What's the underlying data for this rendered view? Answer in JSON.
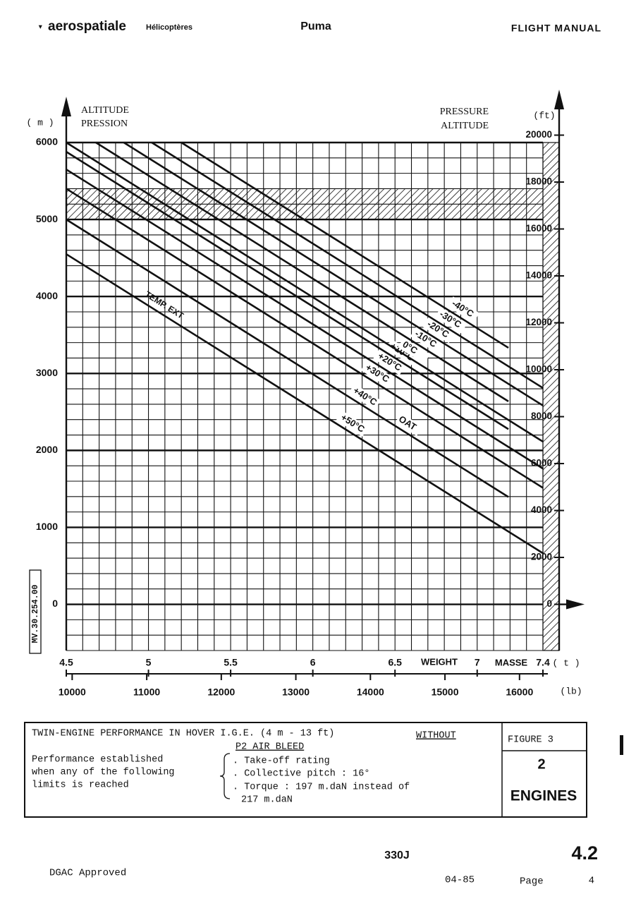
{
  "header": {
    "brand": "aerospatiale",
    "division": "Hélicoptères",
    "aircraft": "Puma",
    "manual": "FLIGHT MANUAL"
  },
  "chart_data": {
    "type": "line",
    "y_label": [
      "ALTITUDE",
      "PRESSION"
    ],
    "y2_label": [
      "PRESSURE",
      "ALTITUDE"
    ],
    "y_unit": "( m )",
    "y2_unit": "(ft)",
    "x_label": "WEIGHT",
    "x_label_fr": "MASSE",
    "x_unit": "( t )",
    "x2_unit": "(lb)",
    "curve_labels": [
      "TEMP. EXT",
      "OAT"
    ],
    "side_code": "MV.30.254.00",
    "xlim": [
      4.5,
      7.4
    ],
    "xticks": [
      4.5,
      5,
      5.5,
      6,
      6.5,
      7,
      7.4
    ],
    "ylim": [
      -600,
      6000
    ],
    "yticks": [
      0,
      1000,
      2000,
      3000,
      4000,
      5000,
      6000
    ],
    "y2lim": [
      -1969,
      19685
    ],
    "y2ticks": [
      0,
      2000,
      4000,
      6000,
      8000,
      10000,
      12000,
      14000,
      16000,
      18000,
      20000
    ],
    "x2lim": [
      9921,
      16314
    ],
    "x2ticks": [
      10000,
      11000,
      12000,
      13000,
      14000,
      15000,
      16000
    ],
    "xgrid": [
      4.5,
      4.6,
      4.7,
      4.8,
      4.9,
      5.0,
      5.1,
      5.2,
      5.3,
      5.4,
      5.5,
      5.6,
      5.7,
      5.8,
      5.9,
      6.0,
      6.1,
      6.2,
      6.3,
      6.4,
      6.5,
      6.6,
      6.7,
      6.8,
      6.9,
      7.0,
      7.1,
      7.2,
      7.3,
      7.4
    ],
    "ygrid": [
      -600,
      -400,
      -200,
      0,
      200,
      400,
      600,
      800,
      1000,
      1200,
      1400,
      1600,
      1800,
      2000,
      2200,
      2400,
      2600,
      2800,
      3000,
      3200,
      3400,
      3600,
      3800,
      4000,
      4200,
      4400,
      4600,
      4800,
      5000,
      5200,
      5400,
      5600,
      5800,
      6000
    ],
    "hatched_band": [
      5000,
      5400
    ],
    "color": "#111111",
    "series": [
      {
        "name": "+50°C",
        "x": [
          4.5,
          7.4
        ],
        "values": [
          4550,
          664
        ]
      },
      {
        "name": "+40°C",
        "x": [
          4.5,
          7.19
        ],
        "values": [
          5000,
          1395
        ]
      },
      {
        "name": "+30°C",
        "x": [
          4.5,
          7.4
        ],
        "values": [
          5400,
          1514
        ]
      },
      {
        "name": "+20°C",
        "x": [
          4.5,
          7.4
        ],
        "values": [
          5650,
          1764
        ]
      },
      {
        "name": "+10°C",
        "x": [
          4.5,
          7.19
        ],
        "values": [
          5880,
          2276
        ]
      },
      {
        "name": "0°C",
        "x": [
          4.5,
          7.4
        ],
        "values": [
          6000,
          2114
        ]
      },
      {
        "name": "-10°C",
        "x": [
          4.68,
          7.19
        ],
        "values": [
          6000,
          2637
        ]
      },
      {
        "name": "-20°C",
        "x": [
          4.85,
          7.4
        ],
        "values": [
          6000,
          2583
        ]
      },
      {
        "name": "-30°C",
        "x": [
          5.02,
          7.4
        ],
        "values": [
          6000,
          2811
        ]
      },
      {
        "name": "-40°C",
        "x": [
          5.2,
          7.19
        ],
        "values": [
          6000,
          3333
        ]
      }
    ]
  },
  "caption": {
    "title": "TWIN-ENGINE PERFORMANCE IN HOVER I.G.E. (4 m - 13 ft)",
    "title_underlined": "WITHOUT",
    "title_line2": "P2 AIR BLEED",
    "condition": [
      "Performance established",
      "when any of the following",
      "limits is reached"
    ],
    "limits": [
      ". Take-off rating",
      ". Collective pitch : 16°",
      ". Torque : 197 m.daN instead of",
      "217 m.daN"
    ],
    "figure": "FIGURE 3",
    "engines_count": 2,
    "engines": "ENGINES"
  },
  "footer": {
    "approval": "DGAC Approved",
    "model": "330J",
    "section": "4.2",
    "date": "04-85",
    "page_label": "Page",
    "page": 4
  }
}
